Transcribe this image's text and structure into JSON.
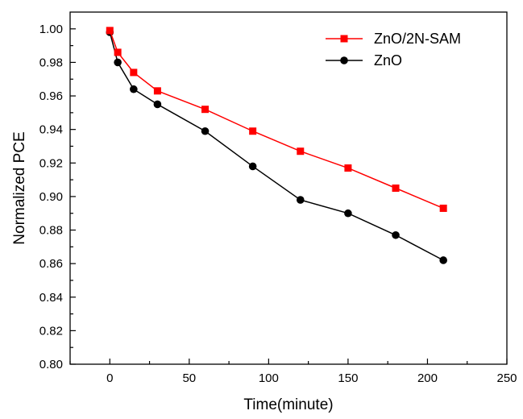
{
  "chart_data": {
    "type": "line",
    "xlabel": "Time(minute)",
    "ylabel": "Normalized PCE",
    "xlim": [
      -25,
      250
    ],
    "ylim": [
      0.8,
      1.01
    ],
    "xticks": [
      0,
      50,
      100,
      150,
      200,
      250
    ],
    "yticks": [
      0.8,
      0.82,
      0.84,
      0.86,
      0.88,
      0.9,
      0.92,
      0.94,
      0.96,
      0.98,
      1.0
    ],
    "xtick_labels": [
      "0",
      "50",
      "100",
      "150",
      "200",
      "250"
    ],
    "ytick_labels": [
      "0.80",
      "0.82",
      "0.84",
      "0.86",
      "0.88",
      "0.90",
      "0.92",
      "0.94",
      "0.96",
      "0.98",
      "1.00"
    ],
    "grid": false,
    "legend_position": "top-right",
    "series": [
      {
        "name": "ZnO/2N-SAM",
        "color": "#ff0000",
        "marker": "square",
        "x": [
          0,
          5,
          15,
          30,
          60,
          90,
          120,
          150,
          180,
          210
        ],
        "y": [
          0.999,
          0.986,
          0.974,
          0.963,
          0.952,
          0.939,
          0.927,
          0.917,
          0.905,
          0.893
        ]
      },
      {
        "name": "ZnO",
        "color": "#000000",
        "marker": "circle",
        "x": [
          0,
          5,
          15,
          30,
          60,
          90,
          120,
          150,
          180,
          210
        ],
        "y": [
          0.998,
          0.98,
          0.964,
          0.955,
          0.939,
          0.918,
          0.898,
          0.89,
          0.877,
          0.862
        ]
      }
    ]
  }
}
